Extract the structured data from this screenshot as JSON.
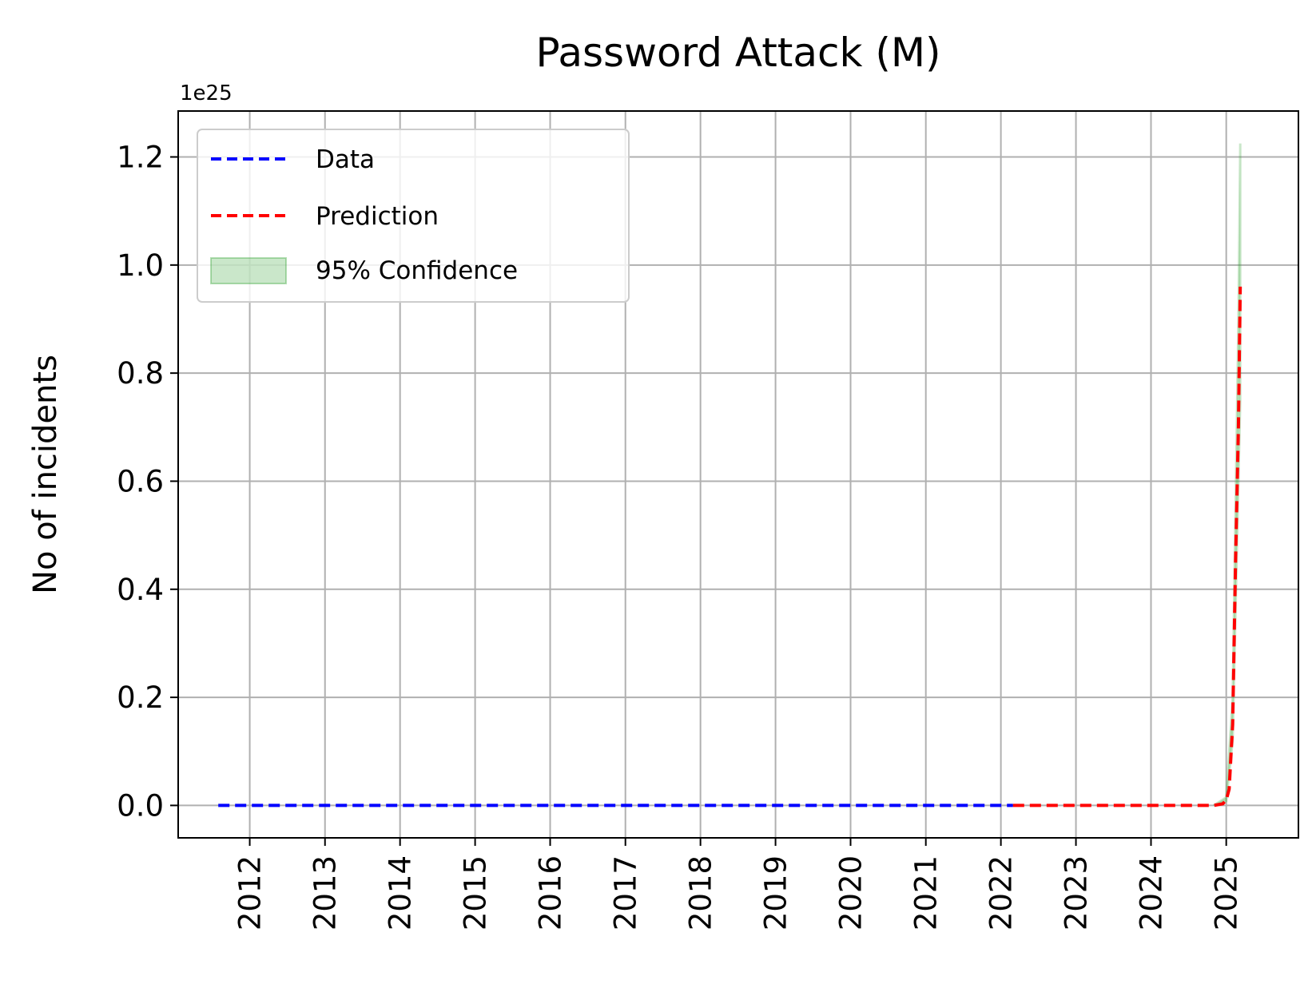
{
  "chart_data": {
    "type": "line",
    "title": "Password Attack (M)",
    "xlabel": "",
    "ylabel": "No of incidents",
    "y_offset_label": "1e25",
    "y_scale": 1e+25,
    "x_ticks": [
      "2012",
      "2013",
      "2014",
      "2015",
      "2016",
      "2017",
      "2018",
      "2019",
      "2020",
      "2021",
      "2022",
      "2023",
      "2024",
      "2025"
    ],
    "y_ticks": [
      "0.0",
      "0.2",
      "0.4",
      "0.6",
      "0.8",
      "1.0",
      "1.2"
    ],
    "y_tick_values": [
      0.0,
      0.2,
      0.4,
      0.6,
      0.8,
      1.0,
      1.2
    ],
    "xlim": [
      "2011-01-18",
      "2025-12-18"
    ],
    "ylim": [
      -0.06,
      1.285
    ],
    "grid": true,
    "legend_position": "upper left",
    "series": [
      {
        "name": "Data",
        "color": "#0000ff",
        "style": "dashed",
        "points": [
          [
            "2011-08-01",
            0.0
          ],
          [
            "2014-01-01",
            0.0
          ],
          [
            "2017-01-01",
            0.0
          ],
          [
            "2020-01-01",
            0.0
          ],
          [
            "2022-03-01",
            0.0
          ]
        ]
      },
      {
        "name": "Prediction",
        "color": "#ff0000",
        "style": "dashed",
        "points": [
          [
            "2022-03-01",
            0.0
          ],
          [
            "2024-01-01",
            0.0
          ],
          [
            "2024-11-01",
            0.0
          ],
          [
            "2024-12-15",
            0.003
          ],
          [
            "2025-01-01",
            0.01
          ],
          [
            "2025-01-15",
            0.03
          ],
          [
            "2025-02-01",
            0.15
          ],
          [
            "2025-02-15",
            0.45
          ],
          [
            "2025-03-01",
            0.7
          ],
          [
            "2025-03-10",
            0.96
          ]
        ]
      }
    ],
    "confidence": {
      "name": "95% Confidence",
      "color": "#2ca02c",
      "opacity": 0.25,
      "lower": [
        [
          "2024-11-01",
          0.0
        ],
        [
          "2025-01-01",
          0.008
        ],
        [
          "2025-02-01",
          0.12
        ],
        [
          "2025-03-01",
          0.6
        ],
        [
          "2025-03-10",
          0.75
        ]
      ],
      "upper": [
        [
          "2024-11-01",
          0.0
        ],
        [
          "2025-01-01",
          0.015
        ],
        [
          "2025-02-01",
          0.2
        ],
        [
          "2025-03-01",
          0.9
        ],
        [
          "2025-03-10",
          1.225
        ]
      ]
    }
  }
}
